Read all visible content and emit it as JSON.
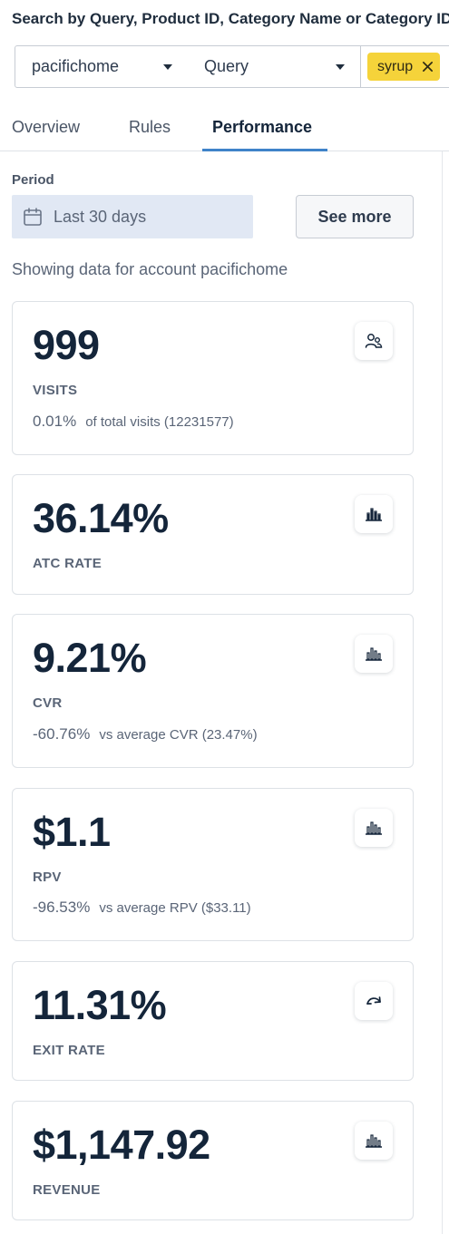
{
  "search": {
    "title": "Search by Query, Product ID, Category Name or Category ID",
    "account_value": "pacifichome",
    "type_value": "Query",
    "tag_label": "syrup"
  },
  "tabs": [
    {
      "label": "Overview",
      "active": false
    },
    {
      "label": "Rules",
      "active": false
    },
    {
      "label": "Performance",
      "active": true
    }
  ],
  "period": {
    "label": "Period",
    "range_value": "Last 30 days",
    "see_more_label": "See more"
  },
  "account_note": "Showing data for account pacifichome",
  "metrics": [
    {
      "value": "999",
      "label": "VISITS",
      "sub_value": "0.01%",
      "sub_text": "of total visits (12231577)",
      "icon": "users-icon"
    },
    {
      "value": "36.14%",
      "label": "ATC RATE",
      "sub_value": "",
      "sub_text": "",
      "icon": "bar-chart-icon"
    },
    {
      "value": "9.21%",
      "label": "CVR",
      "sub_value": "-60.76%",
      "sub_text": "vs average CVR (23.47%)",
      "icon": "bar-chart-icon"
    },
    {
      "value": "$1.1",
      "label": "RPV",
      "sub_value": "-96.53%",
      "sub_text": "vs average RPV ($33.11)",
      "icon": "bar-chart-icon"
    },
    {
      "value": "11.31%",
      "label": "EXIT RATE",
      "sub_value": "",
      "sub_text": "",
      "icon": "exit-arrow-icon"
    },
    {
      "value": "$1,147.92",
      "label": "REVENUE",
      "sub_value": "",
      "sub_text": "",
      "icon": "bar-chart-icon"
    }
  ],
  "colors": {
    "accent": "#3f83c9",
    "tag_background": "#f5d33a",
    "text_dark": "#14253a",
    "text_muted": "#5a6577"
  }
}
